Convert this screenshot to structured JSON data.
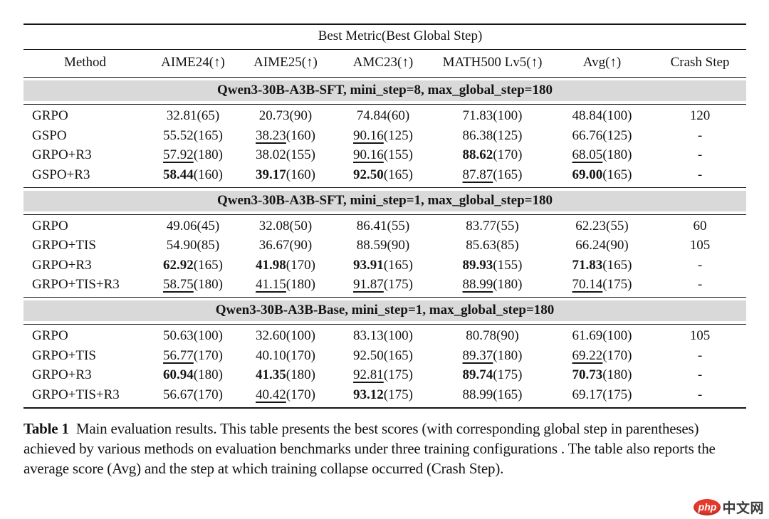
{
  "table": {
    "span_header": "Best Metric(Best Global Step)",
    "columns": [
      "Method",
      "AIME24(↑)",
      "AIME25(↑)",
      "AMC23(↑)",
      "MATH500 Lv5(↑)",
      "Avg(↑)",
      "Crash Step"
    ],
    "band_color": "#d9d9d9",
    "sections": [
      {
        "title": "Qwen3-30B-A3B-SFT, mini_step=8, max_global_step=180",
        "rows": [
          {
            "method": "GRPO",
            "metrics": [
              {
                "value": "32.81",
                "step": "65",
                "style": "plain"
              },
              {
                "value": "20.73",
                "step": "90",
                "style": "plain"
              },
              {
                "value": "74.84",
                "step": "60",
                "style": "plain"
              },
              {
                "value": "71.83",
                "step": "100",
                "style": "plain"
              },
              {
                "value": "48.84",
                "step": "100",
                "style": "plain"
              }
            ],
            "crash_step": "120"
          },
          {
            "method": "GSPO",
            "metrics": [
              {
                "value": "55.52",
                "step": "165",
                "style": "plain"
              },
              {
                "value": "38.23",
                "step": "160",
                "style": "underline"
              },
              {
                "value": "90.16",
                "step": "125",
                "style": "underline"
              },
              {
                "value": "86.38",
                "step": "125",
                "style": "plain"
              },
              {
                "value": "66.76",
                "step": "125",
                "style": "plain"
              }
            ],
            "crash_step": "-"
          },
          {
            "method": "GRPO+R3",
            "metrics": [
              {
                "value": "57.92",
                "step": "180",
                "style": "underline"
              },
              {
                "value": "38.02",
                "step": "155",
                "style": "plain"
              },
              {
                "value": "90.16",
                "step": "155",
                "style": "underline"
              },
              {
                "value": "88.62",
                "step": "170",
                "style": "bold"
              },
              {
                "value": "68.05",
                "step": "180",
                "style": "underline"
              }
            ],
            "crash_step": "-"
          },
          {
            "method": "GSPO+R3",
            "metrics": [
              {
                "value": "58.44",
                "step": "160",
                "style": "bold"
              },
              {
                "value": "39.17",
                "step": "160",
                "style": "bold"
              },
              {
                "value": "92.50",
                "step": "165",
                "style": "bold"
              },
              {
                "value": "87.87",
                "step": "165",
                "style": "underline"
              },
              {
                "value": "69.00",
                "step": "165",
                "style": "bold"
              }
            ],
            "crash_step": "-"
          }
        ]
      },
      {
        "title": "Qwen3-30B-A3B-SFT, mini_step=1, max_global_step=180",
        "rows": [
          {
            "method": "GRPO",
            "metrics": [
              {
                "value": "49.06",
                "step": "45",
                "style": "plain"
              },
              {
                "value": "32.08",
                "step": "50",
                "style": "plain"
              },
              {
                "value": "86.41",
                "step": "55",
                "style": "plain"
              },
              {
                "value": "83.77",
                "step": "55",
                "style": "plain"
              },
              {
                "value": "62.23",
                "step": "55",
                "style": "plain"
              }
            ],
            "crash_step": "60"
          },
          {
            "method": "GRPO+TIS",
            "metrics": [
              {
                "value": "54.90",
                "step": "85",
                "style": "plain"
              },
              {
                "value": "36.67",
                "step": "90",
                "style": "plain"
              },
              {
                "value": "88.59",
                "step": "90",
                "style": "plain"
              },
              {
                "value": "85.63",
                "step": "85",
                "style": "plain"
              },
              {
                "value": "66.24",
                "step": "90",
                "style": "plain"
              }
            ],
            "crash_step": "105"
          },
          {
            "method": "GRPO+R3",
            "metrics": [
              {
                "value": "62.92",
                "step": "165",
                "style": "bold"
              },
              {
                "value": "41.98",
                "step": "170",
                "style": "bold"
              },
              {
                "value": "93.91",
                "step": "165",
                "style": "bold"
              },
              {
                "value": "89.93",
                "step": "155",
                "style": "bold"
              },
              {
                "value": "71.83",
                "step": "165",
                "style": "bold"
              }
            ],
            "crash_step": "-"
          },
          {
            "method": "GRPO+TIS+R3",
            "metrics": [
              {
                "value": "58.75",
                "step": "180",
                "style": "underline"
              },
              {
                "value": "41.15",
                "step": "180",
                "style": "underline"
              },
              {
                "value": "91.87",
                "step": "175",
                "style": "underline"
              },
              {
                "value": "88.99",
                "step": "180",
                "style": "underline"
              },
              {
                "value": "70.14",
                "step": "175",
                "style": "underline"
              }
            ],
            "crash_step": "-"
          }
        ]
      },
      {
        "title": "Qwen3-30B-A3B-Base, mini_step=1, max_global_step=180",
        "rows": [
          {
            "method": "GRPO",
            "metrics": [
              {
                "value": "50.63",
                "step": "100",
                "style": "plain"
              },
              {
                "value": "32.60",
                "step": "100",
                "style": "plain"
              },
              {
                "value": "83.13",
                "step": "100",
                "style": "plain"
              },
              {
                "value": "80.78",
                "step": "90",
                "style": "plain"
              },
              {
                "value": "61.69",
                "step": "100",
                "style": "plain"
              }
            ],
            "crash_step": "105"
          },
          {
            "method": "GRPO+TIS",
            "metrics": [
              {
                "value": "56.77",
                "step": "170",
                "style": "underline"
              },
              {
                "value": "40.10",
                "step": "170",
                "style": "plain"
              },
              {
                "value": "92.50",
                "step": "165",
                "style": "plain"
              },
              {
                "value": "89.37",
                "step": "180",
                "style": "underline"
              },
              {
                "value": "69.22",
                "step": "170",
                "style": "underline"
              }
            ],
            "crash_step": "-"
          },
          {
            "method": "GRPO+R3",
            "metrics": [
              {
                "value": "60.94",
                "step": "180",
                "style": "bold"
              },
              {
                "value": "41.35",
                "step": "180",
                "style": "bold"
              },
              {
                "value": "92.81",
                "step": "175",
                "style": "underline"
              },
              {
                "value": "89.74",
                "step": "175",
                "style": "bold"
              },
              {
                "value": "70.73",
                "step": "180",
                "style": "bold"
              }
            ],
            "crash_step": "-"
          },
          {
            "method": "GRPO+TIS+R3",
            "metrics": [
              {
                "value": "56.67",
                "step": "170",
                "style": "plain"
              },
              {
                "value": "40.42",
                "step": "170",
                "style": "underline"
              },
              {
                "value": "93.12",
                "step": "175",
                "style": "bold"
              },
              {
                "value": "88.99",
                "step": "165",
                "style": "plain"
              },
              {
                "value": "69.17",
                "step": "175",
                "style": "plain"
              }
            ],
            "crash_step": "-"
          }
        ]
      }
    ]
  },
  "caption": {
    "label": "Table 1",
    "text": "Main evaluation results. This table presents the best scores (with corresponding global step in parentheses) achieved by various methods on evaluation benchmarks under three training configurations . The table also reports the average score (Avg) and the step at which training collapse occurred (Crash Step)."
  },
  "logo": {
    "badge_text": "php",
    "site_text": "中文网",
    "badge_color": "#e4392c",
    "text_color": "#3d3d3d"
  }
}
